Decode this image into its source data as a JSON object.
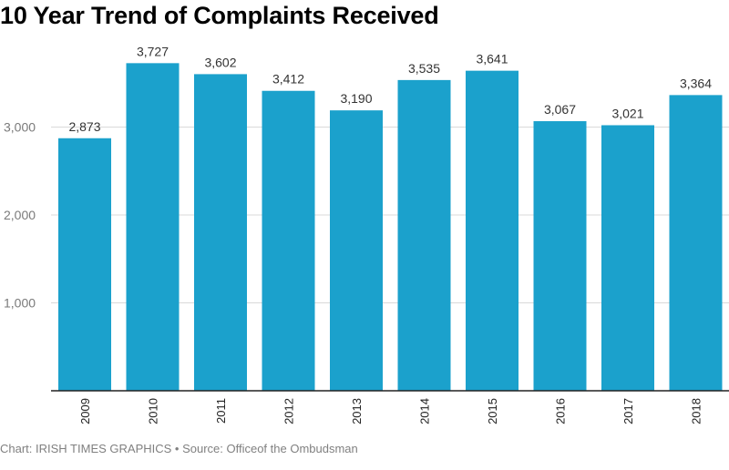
{
  "chart_data": {
    "type": "bar",
    "title": "10 Year Trend of Complaints Received",
    "categories": [
      "2009",
      "2010",
      "2011",
      "2012",
      "2013",
      "2014",
      "2015",
      "2016",
      "2017",
      "2018"
    ],
    "values": [
      2873,
      3727,
      3602,
      3412,
      3190,
      3535,
      3641,
      3067,
      3021,
      3364
    ],
    "data_labels": [
      "2,873",
      "3,727",
      "3,602",
      "3,412",
      "3,190",
      "3,535",
      "3,641",
      "3,067",
      "3,021",
      "3,364"
    ],
    "xlabel": "",
    "ylabel": "",
    "ylim": [
      0,
      3800
    ],
    "yticks": [
      1000,
      2000,
      3000
    ],
    "ytick_labels": [
      "1,000",
      "2,000",
      "3,000"
    ],
    "grid": true,
    "legend": "none",
    "bar_color": "#1ba1cc"
  },
  "footer": {
    "text": "Chart: IRISH TIMES GRAPHICS • Source: Officeof the Ombudsman"
  }
}
